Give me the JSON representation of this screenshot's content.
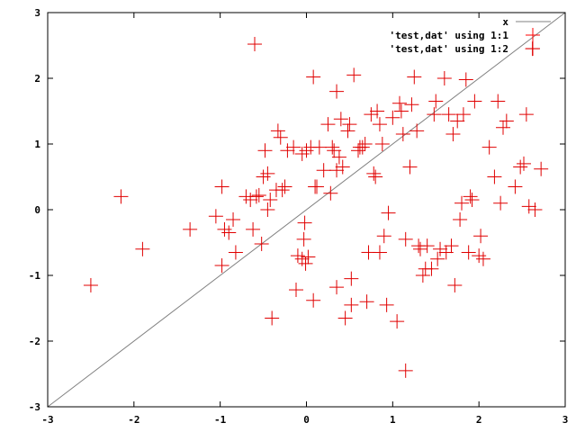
{
  "chart_data": {
    "type": "scatter",
    "xlim": [
      -3,
      3
    ],
    "ylim": [
      -3,
      3
    ],
    "xticks": [
      "-3",
      "-2",
      "-1",
      "0",
      "1",
      "2",
      "3"
    ],
    "yticks": [
      "-3",
      "-2",
      "-1",
      "0",
      "1",
      "2",
      "3"
    ],
    "grid": false,
    "legend_position": "top-right",
    "series": [
      {
        "name": "x",
        "kind": "line",
        "color": "#808080",
        "points": [
          [
            -3,
            -3
          ],
          [
            3,
            3
          ]
        ]
      },
      {
        "name": "'test,dat' using 1:1",
        "kind": "points",
        "color": "#ff0000",
        "points": []
      },
      {
        "name": "'test,dat' using 1:2",
        "kind": "points",
        "color": "#e00000",
        "points": [
          [
            -2.5,
            -1.15
          ],
          [
            -2.15,
            0.2
          ],
          [
            -1.9,
            -0.6
          ],
          [
            -1.35,
            -0.3
          ],
          [
            -1.05,
            -0.1
          ],
          [
            -0.98,
            0.35
          ],
          [
            -0.98,
            -0.85
          ],
          [
            -0.95,
            -0.3
          ],
          [
            -0.9,
            -0.35
          ],
          [
            -0.85,
            -0.15
          ],
          [
            -0.82,
            -0.65
          ],
          [
            -0.7,
            0.2
          ],
          [
            -0.65,
            0.15
          ],
          [
            -0.62,
            -0.3
          ],
          [
            -0.6,
            2.52
          ],
          [
            -0.58,
            0.2
          ],
          [
            -0.55,
            0.22
          ],
          [
            -0.52,
            -0.52
          ],
          [
            -0.5,
            0.5
          ],
          [
            -0.48,
            0.9
          ],
          [
            -0.45,
            0.55
          ],
          [
            -0.42,
            0.15
          ],
          [
            -0.45,
            0.0
          ],
          [
            -0.4,
            -1.65
          ],
          [
            -0.35,
            0.3
          ],
          [
            -0.33,
            1.2
          ],
          [
            -0.3,
            1.1
          ],
          [
            -0.28,
            0.3
          ],
          [
            -0.25,
            0.35
          ],
          [
            -0.22,
            0.9
          ],
          [
            -0.15,
            0.95
          ],
          [
            -0.12,
            -1.22
          ],
          [
            -0.1,
            -0.7
          ],
          [
            -0.05,
            0.85
          ],
          [
            -0.05,
            -0.75
          ],
          [
            -0.03,
            -0.45
          ],
          [
            -0.02,
            -0.2
          ],
          [
            -0.01,
            -0.82
          ],
          [
            0.0,
            0.9
          ],
          [
            0.02,
            -0.72
          ],
          [
            0.05,
            0.95
          ],
          [
            0.08,
            2.02
          ],
          [
            0.08,
            -1.38
          ],
          [
            0.1,
            0.35
          ],
          [
            0.12,
            0.35
          ],
          [
            0.15,
            0.95
          ],
          [
            0.2,
            0.6
          ],
          [
            0.25,
            1.3
          ],
          [
            0.28,
            0.25
          ],
          [
            0.3,
            0.95
          ],
          [
            0.32,
            0.9
          ],
          [
            0.35,
            1.8
          ],
          [
            0.35,
            -1.18
          ],
          [
            0.35,
            0.6
          ],
          [
            0.38,
            0.8
          ],
          [
            0.4,
            1.38
          ],
          [
            0.42,
            0.65
          ],
          [
            0.45,
            -1.65
          ],
          [
            0.48,
            1.2
          ],
          [
            0.5,
            1.3
          ],
          [
            0.52,
            -1.45
          ],
          [
            0.52,
            -1.05
          ],
          [
            0.55,
            2.05
          ],
          [
            0.6,
            0.9
          ],
          [
            0.62,
            0.95
          ],
          [
            0.65,
            0.95
          ],
          [
            0.68,
            1.0
          ],
          [
            0.7,
            -1.4
          ],
          [
            0.72,
            -0.65
          ],
          [
            0.75,
            1.45
          ],
          [
            0.78,
            0.55
          ],
          [
            0.8,
            0.5
          ],
          [
            0.82,
            1.5
          ],
          [
            0.85,
            1.3
          ],
          [
            0.85,
            -0.65
          ],
          [
            0.88,
            1.0
          ],
          [
            0.9,
            -0.4
          ],
          [
            0.93,
            -1.45
          ],
          [
            0.95,
            -0.05
          ],
          [
            1.0,
            1.4
          ],
          [
            1.05,
            -1.7
          ],
          [
            1.08,
            1.62
          ],
          [
            1.1,
            1.5
          ],
          [
            1.12,
            1.15
          ],
          [
            1.15,
            -2.45
          ],
          [
            1.15,
            -0.45
          ],
          [
            1.2,
            0.65
          ],
          [
            1.22,
            1.6
          ],
          [
            1.25,
            2.02
          ],
          [
            1.28,
            1.2
          ],
          [
            1.3,
            -0.55
          ],
          [
            1.32,
            -0.6
          ],
          [
            1.35,
            -1.0
          ],
          [
            1.38,
            -0.9
          ],
          [
            1.4,
            -0.55
          ],
          [
            1.45,
            -0.9
          ],
          [
            1.48,
            1.45
          ],
          [
            1.5,
            1.65
          ],
          [
            1.52,
            -0.75
          ],
          [
            1.55,
            -0.6
          ],
          [
            1.6,
            2.0
          ],
          [
            1.62,
            -0.65
          ],
          [
            1.65,
            1.45
          ],
          [
            1.68,
            -0.55
          ],
          [
            1.7,
            1.15
          ],
          [
            1.72,
            -1.15
          ],
          [
            1.75,
            1.35
          ],
          [
            1.78,
            -0.15
          ],
          [
            1.8,
            0.1
          ],
          [
            1.82,
            1.45
          ],
          [
            1.85,
            1.98
          ],
          [
            1.88,
            -0.65
          ],
          [
            1.9,
            0.2
          ],
          [
            1.92,
            0.15
          ],
          [
            1.95,
            1.65
          ],
          [
            2.0,
            -0.7
          ],
          [
            2.02,
            -0.4
          ],
          [
            2.05,
            -0.75
          ],
          [
            2.12,
            0.95
          ],
          [
            2.18,
            0.5
          ],
          [
            2.22,
            1.65
          ],
          [
            2.25,
            0.1
          ],
          [
            2.28,
            1.25
          ],
          [
            2.32,
            1.35
          ],
          [
            2.42,
            0.35
          ],
          [
            2.48,
            0.65
          ],
          [
            2.52,
            0.7
          ],
          [
            2.55,
            1.45
          ],
          [
            2.58,
            0.05
          ],
          [
            2.62,
            2.45
          ],
          [
            2.65,
            0.0
          ],
          [
            2.72,
            0.62
          ]
        ]
      }
    ]
  }
}
